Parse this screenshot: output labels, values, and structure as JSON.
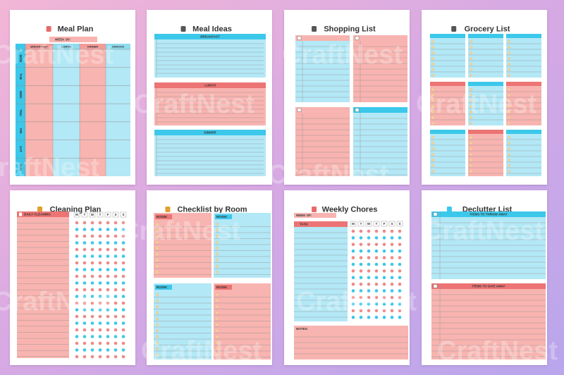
{
  "watermark": "CraftNest",
  "pages": [
    {
      "title": "Meal Plan",
      "week_label": "WEEK OF:",
      "columns": [
        "BREAKFAST",
        "LUNCH",
        "DINNER",
        "SNACKS"
      ],
      "days": [
        "MON",
        "TUE",
        "WED",
        "THU",
        "FRI",
        "SAT",
        "SUN"
      ]
    },
    {
      "title": "Meal Ideas",
      "sections": [
        "BREAKFAST",
        "LUNCH",
        "DINNER"
      ]
    },
    {
      "title": "Shopping List"
    },
    {
      "title": "Grocery List"
    },
    {
      "title": "Cleaning Plan",
      "header": "DAILY CLEANING",
      "days": [
        "M",
        "T",
        "W",
        "T",
        "F",
        "S",
        "S"
      ]
    },
    {
      "title": "Checklist by Room",
      "rooms": [
        "ROOM:",
        "ROOM:",
        "ROOM:",
        "ROOM:"
      ]
    },
    {
      "title": "Weekly Chores",
      "week_label": "WEEK OF:",
      "header": "TASK",
      "days": [
        "M",
        "T",
        "W",
        "T",
        "F",
        "S",
        "S"
      ],
      "notes_label": "NOTES:"
    },
    {
      "title": "Declutter List",
      "sections": [
        "ITEMS TO THROW AWAY",
        "ITEMS TO GIVE AWAY"
      ]
    }
  ]
}
